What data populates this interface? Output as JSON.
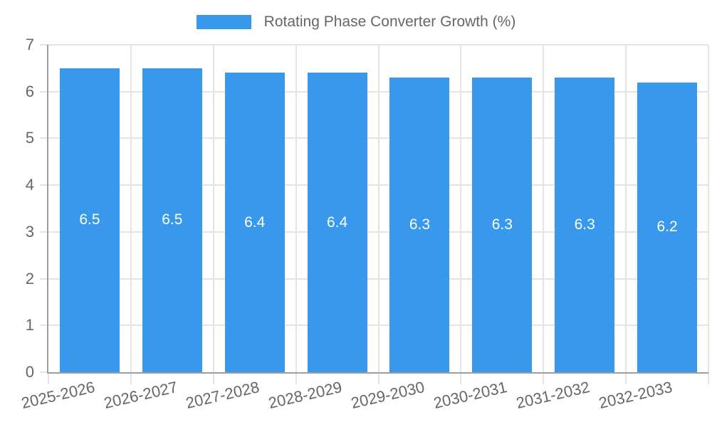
{
  "chart_data": {
    "type": "bar",
    "title": "Rotating Phase Converter Growth (%)",
    "legend": {
      "position": "top",
      "label": "Rotating Phase Converter Growth (%)"
    },
    "categories": [
      "2025-2026",
      "2026-2027",
      "2027-2028",
      "2028-2029",
      "2029-2030",
      "2030-2031",
      "2031-2032",
      "2032-2033"
    ],
    "values": [
      6.5,
      6.5,
      6.4,
      6.4,
      6.3,
      6.3,
      6.3,
      6.2
    ],
    "xlabel": "",
    "ylabel": "",
    "ylim": [
      0,
      7
    ],
    "yticks": [
      0,
      1,
      2,
      3,
      4,
      5,
      6,
      7
    ],
    "grid": true,
    "colors": {
      "bar": "#3899ec",
      "value_label": "#ffffff",
      "axis_text": "#666666",
      "legend_text": "#666666",
      "gridline": "#e3e3e3",
      "axis_line": "#9e9e9e",
      "background": "#ffffff"
    }
  }
}
